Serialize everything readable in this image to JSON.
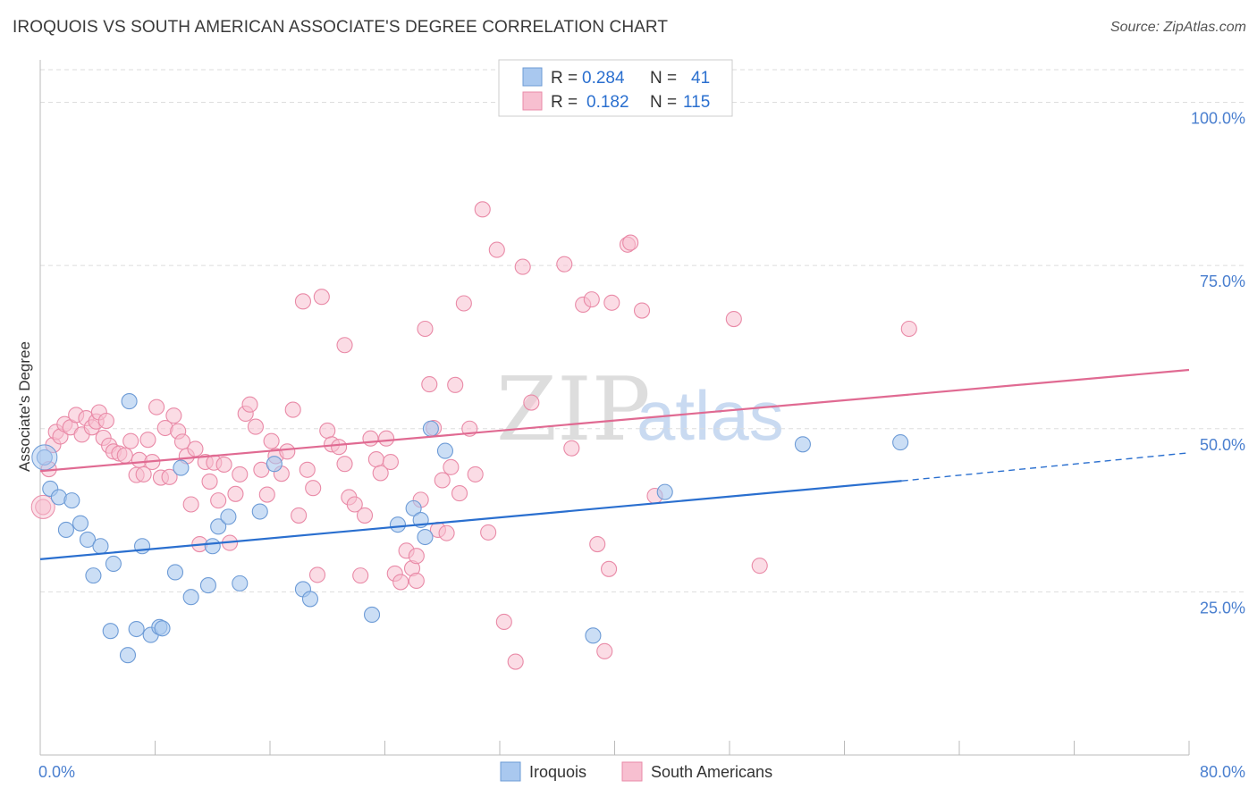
{
  "title": "IROQUOIS VS SOUTH AMERICAN ASSOCIATE'S DEGREE CORRELATION CHART",
  "source": "Source: ZipAtlas.com",
  "watermark": {
    "part1": "ZIP",
    "part2": "atlas"
  },
  "colors": {
    "iroquois_fill": "#a9c8ef",
    "iroquois_stroke": "#6d9bd6",
    "iroquois_line": "#2a6fcf",
    "south_fill": "#f7bfd0",
    "south_stroke": "#e98aa7",
    "south_line": "#e06a92",
    "axis_text": "#4a7fcf",
    "grid": "#dddddd"
  },
  "legend": {
    "rows": [
      {
        "r_label": "R =",
        "r_value": "0.284",
        "n_label": "N =",
        "n_value": "41"
      },
      {
        "r_label": "R =",
        "r_value": "0.182",
        "n_label": "N =",
        "n_value": "115"
      }
    ]
  },
  "bottom_legend": {
    "items": [
      {
        "label": "Iroquois"
      },
      {
        "label": "South Americans"
      }
    ]
  },
  "chart_data": {
    "type": "scatter",
    "title": "IROQUOIS VS SOUTH AMERICAN ASSOCIATE'S DEGREE CORRELATION CHART",
    "xlabel": "",
    "ylabel": "Associate's Degree",
    "xlim": [
      0,
      80
    ],
    "ylim": [
      0,
      105
    ],
    "x_tick_labels": [
      "0.0%",
      "80.0%"
    ],
    "y_tick_labels": [
      "25.0%",
      "50.0%",
      "75.0%",
      "100.0%"
    ],
    "y_ticks": [
      25,
      50,
      75,
      100
    ],
    "grid": true,
    "legend_position": "top-center",
    "series": [
      {
        "name": "Iroquois",
        "R": 0.284,
        "N": 41,
        "trend": {
          "x": [
            0,
            60
          ],
          "y": [
            30.0,
            42.0
          ],
          "dashed_to": [
            80,
            46.3
          ]
        },
        "points": [
          [
            0.3,
            45.6
          ],
          [
            0.7,
            40.8
          ],
          [
            1.3,
            39.5
          ],
          [
            2.2,
            39.0
          ],
          [
            1.8,
            34.5
          ],
          [
            2.8,
            35.5
          ],
          [
            3.3,
            33.0
          ],
          [
            4.2,
            32.0
          ],
          [
            3.7,
            27.5
          ],
          [
            5.1,
            29.3
          ],
          [
            4.9,
            19.0
          ],
          [
            6.1,
            15.3
          ],
          [
            6.7,
            19.3
          ],
          [
            7.1,
            32.0
          ],
          [
            7.7,
            18.4
          ],
          [
            8.3,
            19.6
          ],
          [
            8.5,
            19.4
          ],
          [
            9.4,
            28.0
          ],
          [
            9.8,
            44.0
          ],
          [
            10.5,
            24.2
          ],
          [
            11.7,
            26.0
          ],
          [
            12.0,
            32.0
          ],
          [
            12.4,
            35.0
          ],
          [
            13.1,
            36.5
          ],
          [
            13.9,
            26.3
          ],
          [
            15.3,
            37.3
          ],
          [
            16.3,
            44.6
          ],
          [
            18.3,
            25.4
          ],
          [
            18.8,
            23.9
          ],
          [
            23.1,
            21.5
          ],
          [
            24.9,
            35.3
          ],
          [
            26.0,
            37.8
          ],
          [
            26.5,
            36.0
          ],
          [
            26.8,
            33.4
          ],
          [
            27.2,
            50.0
          ],
          [
            28.2,
            46.6
          ],
          [
            6.2,
            54.2
          ],
          [
            38.5,
            18.3
          ],
          [
            43.5,
            40.3
          ],
          [
            53.1,
            47.6
          ],
          [
            59.9,
            47.9
          ]
        ]
      },
      {
        "name": "South Americans",
        "R": 0.182,
        "N": 115,
        "trend": {
          "x": [
            0,
            80
          ],
          "y": [
            43.5,
            59.0
          ]
        },
        "points": [
          [
            0.2,
            38.0
          ],
          [
            0.6,
            43.8
          ],
          [
            0.9,
            47.5
          ],
          [
            1.1,
            49.5
          ],
          [
            1.4,
            48.8
          ],
          [
            1.7,
            50.7
          ],
          [
            2.1,
            50.2
          ],
          [
            2.5,
            52.1
          ],
          [
            2.9,
            49.1
          ],
          [
            3.2,
            51.6
          ],
          [
            3.6,
            50.2
          ],
          [
            3.9,
            51.1
          ],
          [
            4.1,
            52.5
          ],
          [
            4.4,
            48.6
          ],
          [
            4.6,
            51.2
          ],
          [
            4.8,
            47.4
          ],
          [
            5.1,
            46.5
          ],
          [
            5.5,
            46.2
          ],
          [
            5.9,
            45.9
          ],
          [
            6.3,
            48.1
          ],
          [
            6.7,
            42.9
          ],
          [
            6.9,
            45.2
          ],
          [
            7.2,
            43.0
          ],
          [
            7.5,
            48.3
          ],
          [
            7.8,
            44.9
          ],
          [
            8.1,
            53.3
          ],
          [
            8.4,
            42.5
          ],
          [
            8.7,
            50.1
          ],
          [
            9.0,
            42.6
          ],
          [
            9.3,
            52.0
          ],
          [
            9.6,
            49.6
          ],
          [
            9.9,
            48.0
          ],
          [
            10.2,
            45.8
          ],
          [
            10.5,
            38.4
          ],
          [
            10.8,
            46.9
          ],
          [
            11.1,
            32.3
          ],
          [
            11.5,
            44.9
          ],
          [
            11.8,
            41.9
          ],
          [
            12.1,
            44.8
          ],
          [
            12.4,
            39.0
          ],
          [
            12.8,
            44.5
          ],
          [
            13.2,
            32.5
          ],
          [
            13.6,
            40.0
          ],
          [
            13.9,
            43.0
          ],
          [
            14.3,
            52.3
          ],
          [
            14.6,
            53.7
          ],
          [
            15.0,
            50.3
          ],
          [
            15.4,
            43.7
          ],
          [
            15.8,
            39.9
          ],
          [
            16.1,
            48.1
          ],
          [
            16.4,
            45.8
          ],
          [
            16.8,
            43.1
          ],
          [
            17.2,
            46.5
          ],
          [
            17.6,
            52.9
          ],
          [
            18.0,
            36.7
          ],
          [
            18.3,
            69.5
          ],
          [
            18.6,
            43.7
          ],
          [
            19.0,
            40.9
          ],
          [
            19.3,
            27.6
          ],
          [
            19.6,
            70.2
          ],
          [
            20.0,
            49.7
          ],
          [
            20.3,
            47.6
          ],
          [
            20.8,
            47.2
          ],
          [
            21.2,
            62.8
          ],
          [
            21.5,
            39.5
          ],
          [
            21.9,
            38.4
          ],
          [
            22.3,
            27.5
          ],
          [
            22.6,
            36.7
          ],
          [
            23.0,
            48.5
          ],
          [
            23.4,
            45.3
          ],
          [
            23.7,
            43.2
          ],
          [
            24.1,
            48.5
          ],
          [
            24.4,
            44.9
          ],
          [
            24.7,
            27.8
          ],
          [
            25.1,
            26.5
          ],
          [
            25.5,
            31.3
          ],
          [
            25.9,
            28.6
          ],
          [
            26.2,
            30.5
          ],
          [
            26.5,
            39.1
          ],
          [
            26.8,
            65.3
          ],
          [
            27.1,
            56.8
          ],
          [
            27.4,
            50.1
          ],
          [
            27.7,
            34.5
          ],
          [
            28.0,
            42.1
          ],
          [
            28.3,
            34.0
          ],
          [
            28.6,
            44.1
          ],
          [
            28.9,
            56.7
          ],
          [
            29.2,
            40.1
          ],
          [
            29.5,
            69.2
          ],
          [
            29.9,
            50.0
          ],
          [
            30.3,
            43.0
          ],
          [
            30.8,
            83.6
          ],
          [
            31.2,
            34.1
          ],
          [
            31.8,
            77.4
          ],
          [
            32.3,
            20.4
          ],
          [
            33.1,
            14.3
          ],
          [
            33.6,
            74.8
          ],
          [
            34.2,
            54.0
          ],
          [
            36.5,
            75.2
          ],
          [
            37.0,
            47.0
          ],
          [
            37.8,
            69.0
          ],
          [
            38.4,
            69.8
          ],
          [
            38.8,
            32.3
          ],
          [
            39.3,
            15.9
          ],
          [
            39.8,
            69.3
          ],
          [
            40.9,
            78.2
          ],
          [
            41.1,
            78.5
          ],
          [
            41.9,
            68.1
          ],
          [
            42.8,
            39.7
          ],
          [
            48.3,
            66.8
          ],
          [
            50.1,
            29.0
          ],
          [
            60.5,
            65.3
          ],
          [
            39.6,
            28.5
          ],
          [
            26.2,
            26.7
          ],
          [
            21.2,
            44.6
          ]
        ]
      }
    ]
  }
}
